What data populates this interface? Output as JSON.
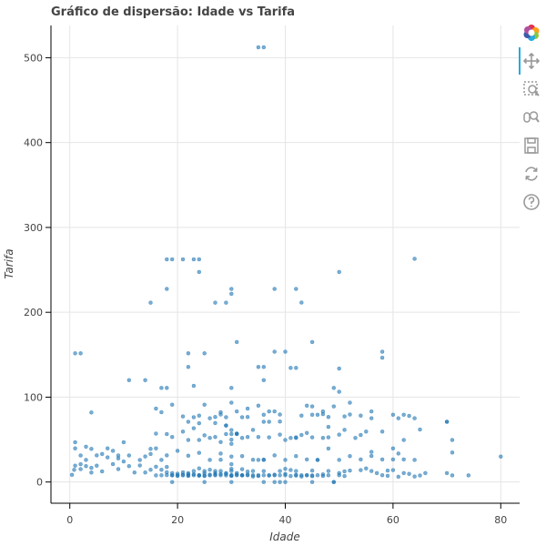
{
  "chart_data": {
    "type": "scatter",
    "title": "Gráfico de dispersão: Idade vs Tarifa",
    "xlabel": "Idade",
    "ylabel": "Tarifa",
    "xlim": [
      -3.5,
      83.5
    ],
    "ylim": [
      -25,
      538
    ],
    "x_ticks": [
      0,
      20,
      40,
      60,
      80
    ],
    "y_ticks": [
      0,
      100,
      200,
      300,
      400,
      500
    ],
    "grid": true,
    "color": "#1f77b4",
    "points": [
      [
        35,
        512.3
      ],
      [
        36,
        512.3
      ],
      [
        18,
        262.4
      ],
      [
        19,
        262.4
      ],
      [
        21,
        262.4
      ],
      [
        23,
        262.4
      ],
      [
        24,
        262.4
      ],
      [
        64,
        263
      ],
      [
        24,
        247.5
      ],
      [
        50,
        247.5
      ],
      [
        18,
        227.5
      ],
      [
        30,
        227.5
      ],
      [
        38,
        227.5
      ],
      [
        42,
        227.5
      ],
      [
        15,
        211.3
      ],
      [
        27,
        211.3
      ],
      [
        29,
        211.3
      ],
      [
        30,
        221.8
      ],
      [
        43,
        211.5
      ],
      [
        31,
        164.9
      ],
      [
        45,
        164.9
      ],
      [
        1,
        151.6
      ],
      [
        2,
        151.6
      ],
      [
        22,
        151.6
      ],
      [
        25,
        151.6
      ],
      [
        38,
        153.5
      ],
      [
        40,
        153.5
      ],
      [
        58,
        153.5
      ],
      [
        58,
        146.5
      ],
      [
        22,
        135.6
      ],
      [
        35,
        135.6
      ],
      [
        36,
        135.6
      ],
      [
        41,
        134.5
      ],
      [
        42,
        134.5
      ],
      [
        50,
        133.7
      ],
      [
        11,
        120
      ],
      [
        14,
        120
      ],
      [
        36,
        120
      ],
      [
        23,
        113.3
      ],
      [
        17,
        110.9
      ],
      [
        18,
        110.9
      ],
      [
        30,
        110.9
      ],
      [
        49,
        110.9
      ],
      [
        50,
        106.4
      ],
      [
        19,
        91.1
      ],
      [
        25,
        91.1
      ],
      [
        30,
        93.5
      ],
      [
        52,
        93.5
      ],
      [
        35,
        90
      ],
      [
        45,
        89.1
      ],
      [
        47,
        83.2
      ],
      [
        56,
        83.2
      ],
      [
        4,
        81.9
      ],
      [
        62,
        79.2
      ],
      [
        63,
        77.9
      ],
      [
        54,
        78.3
      ],
      [
        51,
        77.3
      ],
      [
        33,
        76.7
      ],
      [
        21,
        77.3
      ],
      [
        39,
        79.6
      ],
      [
        22,
        71
      ],
      [
        16,
        86.5
      ],
      [
        17,
        82.2
      ],
      [
        29,
        76.3
      ],
      [
        27,
        76.7
      ],
      [
        70,
        71
      ],
      [
        61,
        75.2
      ],
      [
        48,
        76.7
      ],
      [
        28,
        82.2
      ],
      [
        46,
        79.2
      ],
      [
        65,
        61.9
      ],
      [
        37,
        52.6
      ],
      [
        26,
        52
      ],
      [
        44,
        57.8
      ],
      [
        31,
        57
      ],
      [
        19,
        53.1
      ],
      [
        42,
        52.6
      ],
      [
        29,
        66.6
      ],
      [
        23,
        63.4
      ],
      [
        15,
        39
      ],
      [
        48,
        65
      ],
      [
        37,
        83.2
      ],
      [
        24,
        69.3
      ],
      [
        56,
        30.7
      ],
      [
        60,
        39.6
      ],
      [
        71,
        49.5
      ],
      [
        71,
        34.7
      ],
      [
        61,
        33.5
      ],
      [
        58,
        26.6
      ],
      [
        62,
        26.6
      ],
      [
        64,
        26
      ],
      [
        1,
        46.9
      ],
      [
        1,
        39.7
      ],
      [
        2,
        31.3
      ],
      [
        3,
        41.6
      ],
      [
        4,
        39
      ],
      [
        5,
        31.4
      ],
      [
        6,
        33
      ],
      [
        7,
        39.7
      ],
      [
        8,
        36.8
      ],
      [
        9,
        31.3
      ],
      [
        10,
        46.9
      ],
      [
        11,
        31.3
      ],
      [
        13,
        25.9
      ],
      [
        14,
        30.1
      ],
      [
        15,
        33
      ],
      [
        16,
        39.7
      ],
      [
        17,
        26
      ],
      [
        18,
        31.4
      ],
      [
        20,
        36.8
      ],
      [
        22,
        31
      ],
      [
        24,
        34.4
      ],
      [
        26,
        26
      ],
      [
        28,
        33.5
      ],
      [
        30,
        30
      ],
      [
        32,
        30.5
      ],
      [
        34,
        26.3
      ],
      [
        36,
        26
      ],
      [
        38,
        31.4
      ],
      [
        40,
        26
      ],
      [
        42,
        30.5
      ],
      [
        44,
        26.6
      ],
      [
        46,
        26
      ],
      [
        48,
        39.4
      ],
      [
        50,
        26
      ],
      [
        52,
        30.5
      ],
      [
        54,
        26.6
      ],
      [
        56,
        35.5
      ],
      [
        60,
        26.6
      ],
      [
        80,
        30
      ],
      [
        0.4,
        8.5
      ],
      [
        0.8,
        14.4
      ],
      [
        1,
        19.3
      ],
      [
        2,
        21
      ],
      [
        2,
        15.2
      ],
      [
        3,
        26
      ],
      [
        3,
        18.8
      ],
      [
        4,
        11.1
      ],
      [
        4,
        16.7
      ],
      [
        5,
        19.3
      ],
      [
        6,
        12.5
      ],
      [
        7,
        29.1
      ],
      [
        8,
        21.1
      ],
      [
        9,
        15.2
      ],
      [
        9,
        27.9
      ],
      [
        10,
        24.2
      ],
      [
        11,
        18.8
      ],
      [
        12,
        11.2
      ],
      [
        13,
        19.5
      ],
      [
        14,
        11.2
      ],
      [
        15,
        14.5
      ],
      [
        16,
        7.8
      ],
      [
        16,
        18
      ],
      [
        17,
        7.9
      ],
      [
        17,
        14.5
      ],
      [
        18,
        8.1
      ],
      [
        18,
        11.5
      ],
      [
        18,
        17.8
      ],
      [
        19,
        7.8
      ],
      [
        19,
        10.5
      ],
      [
        19,
        8.05
      ],
      [
        20,
        7.9
      ],
      [
        20,
        9.8
      ],
      [
        20,
        7.2
      ],
      [
        21,
        7.8
      ],
      [
        21,
        8.7
      ],
      [
        21,
        11.5
      ],
      [
        22,
        7.2
      ],
      [
        22,
        7.8
      ],
      [
        22,
        9
      ],
      [
        22,
        10.5
      ],
      [
        23,
        7.9
      ],
      [
        23,
        9.2
      ],
      [
        23,
        13
      ],
      [
        24,
        7.5
      ],
      [
        24,
        8.05
      ],
      [
        24,
        7.9
      ],
      [
        24,
        16.1
      ],
      [
        25,
        7.1
      ],
      [
        25,
        7.7
      ],
      [
        25,
        10.5
      ],
      [
        25,
        13
      ],
      [
        26,
        7.8
      ],
      [
        26,
        8.7
      ],
      [
        26,
        14.5
      ],
      [
        27,
        7.9
      ],
      [
        27,
        8.7
      ],
      [
        27,
        10.5
      ],
      [
        27,
        13
      ],
      [
        28,
        7.9
      ],
      [
        28,
        9.5
      ],
      [
        28,
        13
      ],
      [
        28,
        26.3
      ],
      [
        29,
        7.8
      ],
      [
        29,
        9.5
      ],
      [
        29,
        10.5
      ],
      [
        30,
        7.2
      ],
      [
        30,
        7.8
      ],
      [
        30,
        8.05
      ],
      [
        30,
        13
      ],
      [
        30,
        15.5
      ],
      [
        30,
        21
      ],
      [
        31,
        7.9
      ],
      [
        31,
        8.7
      ],
      [
        31,
        10.5
      ],
      [
        32,
        7.8
      ],
      [
        32,
        8.05
      ],
      [
        32,
        7.9
      ],
      [
        32,
        15.1
      ],
      [
        33,
        7.9
      ],
      [
        33,
        8.7
      ],
      [
        33,
        12.3
      ],
      [
        34,
        8.05
      ],
      [
        34,
        13
      ],
      [
        34,
        6.5
      ],
      [
        35,
        7.1
      ],
      [
        35,
        8.05
      ],
      [
        35,
        26
      ],
      [
        36,
        7.9
      ],
      [
        36,
        12.9
      ],
      [
        36,
        26.4
      ],
      [
        37,
        7.9
      ],
      [
        37,
        7.75
      ],
      [
        38,
        7.9
      ],
      [
        38,
        8.7
      ],
      [
        39,
        7.9
      ],
      [
        39,
        13
      ],
      [
        40,
        7.9
      ],
      [
        40,
        9.5
      ],
      [
        40,
        15.5
      ],
      [
        41,
        7.1
      ],
      [
        41,
        14.1
      ],
      [
        42,
        7.6
      ],
      [
        42,
        8.4
      ],
      [
        42,
        13
      ],
      [
        43,
        6.5
      ],
      [
        43,
        8.05
      ],
      [
        44,
        7.9
      ],
      [
        44,
        8.05
      ],
      [
        45,
        6.9
      ],
      [
        45,
        7.8
      ],
      [
        45,
        13.5
      ],
      [
        46,
        8.05
      ],
      [
        46,
        26
      ],
      [
        47,
        7.2
      ],
      [
        47,
        9
      ],
      [
        48,
        7.9
      ],
      [
        48,
        13
      ],
      [
        49,
        0
      ],
      [
        50,
        8.05
      ],
      [
        50,
        10.5
      ],
      [
        51,
        7.1
      ],
      [
        51,
        12.5
      ],
      [
        52,
        13.5
      ],
      [
        54,
        14
      ],
      [
        55,
        16
      ],
      [
        56,
        13
      ],
      [
        57,
        10.5
      ],
      [
        58,
        8.05
      ],
      [
        59,
        7.25
      ],
      [
        59,
        13.5
      ],
      [
        60,
        14
      ],
      [
        61,
        6.2
      ],
      [
        62,
        10.5
      ],
      [
        63,
        9.6
      ],
      [
        64,
        6.5
      ],
      [
        65,
        7.75
      ],
      [
        66,
        10.5
      ],
      [
        70,
        10.5
      ],
      [
        71,
        7.8
      ],
      [
        74,
        7.8
      ],
      [
        45,
        0
      ],
      [
        36,
        0
      ],
      [
        38,
        0
      ],
      [
        30,
        0
      ],
      [
        40,
        0
      ],
      [
        19,
        0
      ],
      [
        25,
        0
      ],
      [
        39,
        0
      ],
      [
        49,
        0
      ],
      [
        29,
        56.5
      ],
      [
        30,
        56.5
      ],
      [
        31,
        56.5
      ],
      [
        30,
        50
      ],
      [
        30,
        45
      ],
      [
        28,
        47.1
      ],
      [
        27,
        53.1
      ],
      [
        32,
        52
      ],
      [
        35,
        53.1
      ],
      [
        40,
        49.5
      ],
      [
        41,
        51.9
      ],
      [
        45,
        52.6
      ],
      [
        33,
        53.1
      ],
      [
        24,
        49.5
      ],
      [
        22,
        49.5
      ],
      [
        18,
        56.5
      ],
      [
        31,
        57
      ],
      [
        16,
        57
      ],
      [
        29,
        66.6
      ],
      [
        36,
        71
      ],
      [
        37,
        71
      ],
      [
        39,
        71.3
      ],
      [
        32,
        76.3
      ],
      [
        24,
        78.3
      ],
      [
        28,
        79.6
      ],
      [
        36,
        79.2
      ],
      [
        45,
        79.2
      ],
      [
        43,
        78.3
      ],
      [
        49,
        89.1
      ],
      [
        31,
        83.2
      ],
      [
        33,
        86.5
      ],
      [
        47,
        80
      ],
      [
        56,
        75.2
      ],
      [
        27,
        69.5
      ],
      [
        26,
        75.2
      ],
      [
        23,
        76.3
      ],
      [
        21,
        59.4
      ],
      [
        30,
        61.2
      ],
      [
        25,
        55
      ],
      [
        34,
        61.4
      ],
      [
        38,
        83.2
      ],
      [
        39,
        55.9
      ],
      [
        42,
        52
      ],
      [
        43,
        55.4
      ],
      [
        50,
        55.9
      ],
      [
        47,
        52
      ],
      [
        51,
        61.4
      ],
      [
        52,
        79.6
      ],
      [
        53,
        51.9
      ],
      [
        54,
        55.4
      ],
      [
        55,
        59.4
      ],
      [
        58,
        59.4
      ],
      [
        62,
        49.5
      ],
      [
        64,
        75.2
      ],
      [
        48,
        52.6
      ],
      [
        44,
        90
      ],
      [
        60,
        79.2
      ],
      [
        70,
        71
      ]
    ]
  },
  "toolbar": {
    "tools": [
      "bokeh-logo-icon",
      "pan-icon",
      "box-zoom-icon",
      "wheel-zoom-icon",
      "save-icon",
      "reset-icon",
      "help-icon"
    ]
  }
}
